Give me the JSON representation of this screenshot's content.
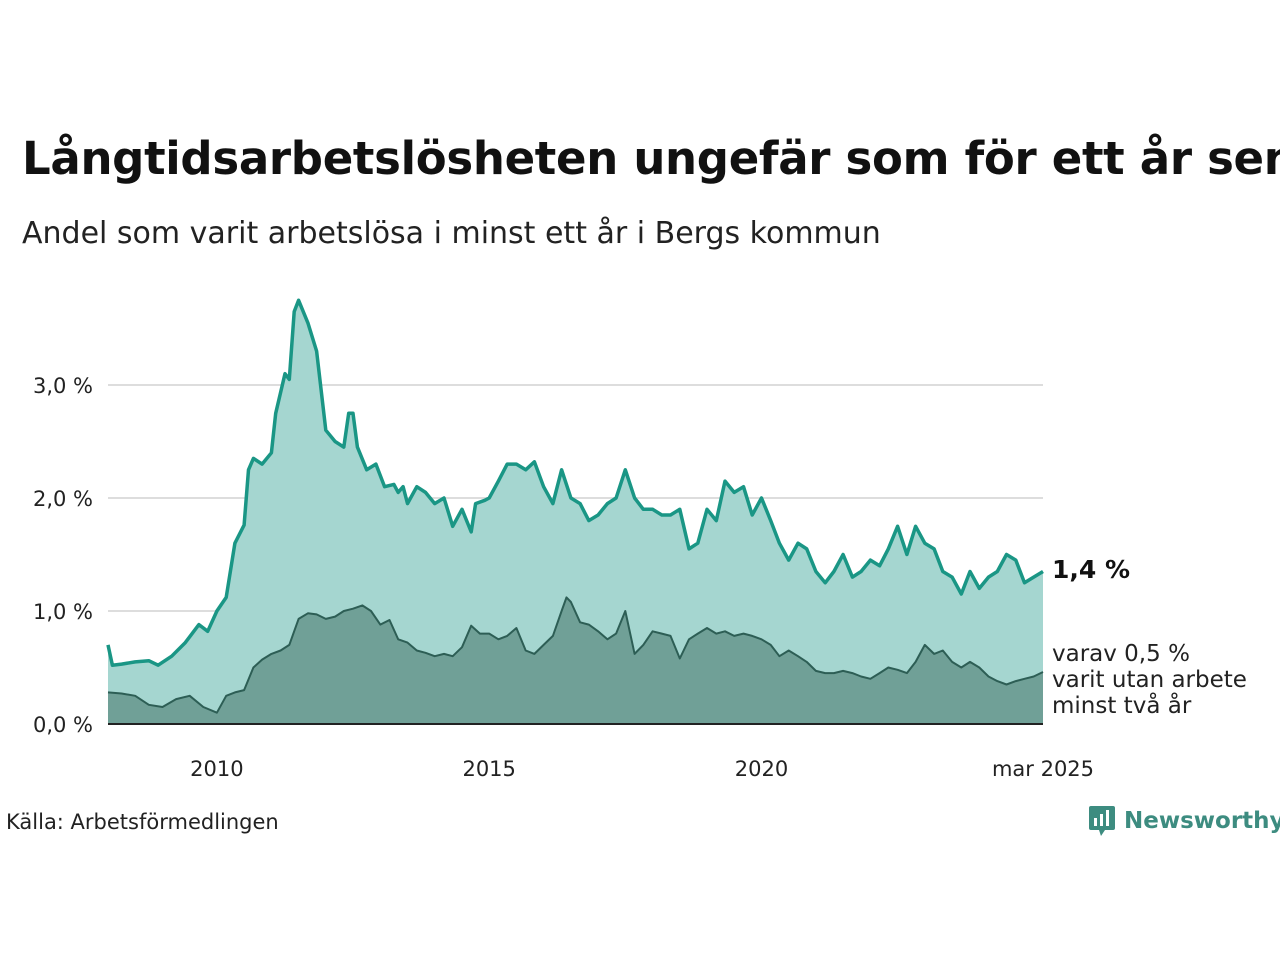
{
  "title": "Långtidsarbetslösheten ungefär som för ett år sen",
  "subtitle": "Andel som varit arbetslösa i minst ett år i Bergs kommun",
  "source": "Källa: Arbetsförmedlingen",
  "brand": {
    "name": "Newsworthy",
    "icon": "newsworthy-logo-icon"
  },
  "colors": {
    "long_line": "#1a9685",
    "long_fill": "#a5d6d0",
    "two_year_fill": "#70a097",
    "two_year_line": "#2d5e55",
    "grid": "#dddddd"
  },
  "annotations": {
    "end_value": "1,4 %",
    "sub_line1": "varav 0,5 %",
    "sub_line2": "varit utan arbete",
    "sub_line3": "minst två år"
  },
  "chart_data": {
    "type": "area",
    "y_ticks": [
      {
        "value": 0.0,
        "label": "0,0 %"
      },
      {
        "value": 1.0,
        "label": "1,0 %"
      },
      {
        "value": 2.0,
        "label": "2,0 %"
      },
      {
        "value": 3.0,
        "label": "3,0 %"
      }
    ],
    "x_ticks": [
      {
        "value": 2010,
        "label": "2010"
      },
      {
        "value": 2015,
        "label": "2015"
      },
      {
        "value": 2020,
        "label": "2020"
      },
      {
        "value": 2025.17,
        "label": "mar 2025"
      }
    ],
    "x_range": [
      2008.0,
      2025.17
    ],
    "y_range": [
      0,
      3.8
    ],
    "series": [
      {
        "name": "minst ett år",
        "points": [
          [
            2008.0,
            0.7
          ],
          [
            2008.08,
            0.52
          ],
          [
            2008.25,
            0.53
          ],
          [
            2008.5,
            0.55
          ],
          [
            2008.75,
            0.56
          ],
          [
            2008.92,
            0.52
          ],
          [
            2009.17,
            0.6
          ],
          [
            2009.42,
            0.72
          ],
          [
            2009.67,
            0.88
          ],
          [
            2009.83,
            0.82
          ],
          [
            2010.0,
            1.0
          ],
          [
            2010.17,
            1.12
          ],
          [
            2010.33,
            1.6
          ],
          [
            2010.5,
            1.76
          ],
          [
            2010.58,
            2.25
          ],
          [
            2010.67,
            2.35
          ],
          [
            2010.83,
            2.3
          ],
          [
            2011.0,
            2.4
          ],
          [
            2011.08,
            2.75
          ],
          [
            2011.25,
            3.1
          ],
          [
            2011.33,
            3.05
          ],
          [
            2011.42,
            3.65
          ],
          [
            2011.5,
            3.75
          ],
          [
            2011.67,
            3.55
          ],
          [
            2011.83,
            3.3
          ],
          [
            2012.0,
            2.6
          ],
          [
            2012.17,
            2.5
          ],
          [
            2012.33,
            2.45
          ],
          [
            2012.42,
            2.75
          ],
          [
            2012.5,
            2.75
          ],
          [
            2012.58,
            2.45
          ],
          [
            2012.75,
            2.25
          ],
          [
            2012.92,
            2.3
          ],
          [
            2013.08,
            2.1
          ],
          [
            2013.25,
            2.12
          ],
          [
            2013.33,
            2.05
          ],
          [
            2013.42,
            2.1
          ],
          [
            2013.5,
            1.95
          ],
          [
            2013.67,
            2.1
          ],
          [
            2013.83,
            2.05
          ],
          [
            2014.0,
            1.95
          ],
          [
            2014.17,
            2.0
          ],
          [
            2014.33,
            1.75
          ],
          [
            2014.5,
            1.9
          ],
          [
            2014.67,
            1.7
          ],
          [
            2014.75,
            1.95
          ],
          [
            2014.92,
            1.98
          ],
          [
            2015.0,
            2.0
          ],
          [
            2015.17,
            2.15
          ],
          [
            2015.33,
            2.3
          ],
          [
            2015.5,
            2.3
          ],
          [
            2015.67,
            2.25
          ],
          [
            2015.83,
            2.32
          ],
          [
            2016.0,
            2.1
          ],
          [
            2016.17,
            1.95
          ],
          [
            2016.33,
            2.25
          ],
          [
            2016.5,
            2.0
          ],
          [
            2016.67,
            1.95
          ],
          [
            2016.83,
            1.8
          ],
          [
            2017.0,
            1.85
          ],
          [
            2017.17,
            1.95
          ],
          [
            2017.33,
            2.0
          ],
          [
            2017.5,
            2.25
          ],
          [
            2017.67,
            2.0
          ],
          [
            2017.83,
            1.9
          ],
          [
            2018.0,
            1.9
          ],
          [
            2018.17,
            1.85
          ],
          [
            2018.33,
            1.85
          ],
          [
            2018.5,
            1.9
          ],
          [
            2018.67,
            1.55
          ],
          [
            2018.83,
            1.6
          ],
          [
            2019.0,
            1.9
          ],
          [
            2019.17,
            1.8
          ],
          [
            2019.33,
            2.15
          ],
          [
            2019.5,
            2.05
          ],
          [
            2019.67,
            2.1
          ],
          [
            2019.83,
            1.85
          ],
          [
            2020.0,
            2.0
          ],
          [
            2020.17,
            1.8
          ],
          [
            2020.33,
            1.6
          ],
          [
            2020.5,
            1.45
          ],
          [
            2020.67,
            1.6
          ],
          [
            2020.83,
            1.55
          ],
          [
            2021.0,
            1.35
          ],
          [
            2021.17,
            1.25
          ],
          [
            2021.33,
            1.35
          ],
          [
            2021.5,
            1.5
          ],
          [
            2021.67,
            1.3
          ],
          [
            2021.83,
            1.35
          ],
          [
            2022.0,
            1.45
          ],
          [
            2022.17,
            1.4
          ],
          [
            2022.33,
            1.55
          ],
          [
            2022.5,
            1.75
          ],
          [
            2022.67,
            1.5
          ],
          [
            2022.83,
            1.75
          ],
          [
            2023.0,
            1.6
          ],
          [
            2023.17,
            1.55
          ],
          [
            2023.33,
            1.35
          ],
          [
            2023.5,
            1.3
          ],
          [
            2023.67,
            1.15
          ],
          [
            2023.83,
            1.35
          ],
          [
            2024.0,
            1.2
          ],
          [
            2024.17,
            1.3
          ],
          [
            2024.33,
            1.35
          ],
          [
            2024.5,
            1.5
          ],
          [
            2024.67,
            1.45
          ],
          [
            2024.83,
            1.25
          ],
          [
            2025.0,
            1.3
          ],
          [
            2025.17,
            1.35
          ]
        ]
      },
      {
        "name": "minst två år",
        "points": [
          [
            2008.0,
            0.28
          ],
          [
            2008.25,
            0.27
          ],
          [
            2008.5,
            0.25
          ],
          [
            2008.75,
            0.17
          ],
          [
            2009.0,
            0.15
          ],
          [
            2009.25,
            0.22
          ],
          [
            2009.5,
            0.25
          ],
          [
            2009.75,
            0.15
          ],
          [
            2010.0,
            0.1
          ],
          [
            2010.17,
            0.25
          ],
          [
            2010.33,
            0.28
          ],
          [
            2010.5,
            0.3
          ],
          [
            2010.67,
            0.5
          ],
          [
            2010.83,
            0.57
          ],
          [
            2011.0,
            0.62
          ],
          [
            2011.17,
            0.65
          ],
          [
            2011.33,
            0.7
          ],
          [
            2011.5,
            0.93
          ],
          [
            2011.67,
            0.98
          ],
          [
            2011.83,
            0.97
          ],
          [
            2012.0,
            0.93
          ],
          [
            2012.17,
            0.95
          ],
          [
            2012.33,
            1.0
          ],
          [
            2012.5,
            1.02
          ],
          [
            2012.67,
            1.05
          ],
          [
            2012.83,
            1.0
          ],
          [
            2013.0,
            0.88
          ],
          [
            2013.17,
            0.92
          ],
          [
            2013.33,
            0.75
          ],
          [
            2013.5,
            0.72
          ],
          [
            2013.67,
            0.65
          ],
          [
            2013.83,
            0.63
          ],
          [
            2014.0,
            0.6
          ],
          [
            2014.17,
            0.62
          ],
          [
            2014.33,
            0.6
          ],
          [
            2014.5,
            0.68
          ],
          [
            2014.67,
            0.87
          ],
          [
            2014.83,
            0.8
          ],
          [
            2015.0,
            0.8
          ],
          [
            2015.17,
            0.75
          ],
          [
            2015.33,
            0.78
          ],
          [
            2015.5,
            0.85
          ],
          [
            2015.67,
            0.65
          ],
          [
            2015.83,
            0.62
          ],
          [
            2016.0,
            0.7
          ],
          [
            2016.17,
            0.78
          ],
          [
            2016.33,
            1.0
          ],
          [
            2016.42,
            1.12
          ],
          [
            2016.5,
            1.08
          ],
          [
            2016.67,
            0.9
          ],
          [
            2016.83,
            0.88
          ],
          [
            2017.0,
            0.82
          ],
          [
            2017.17,
            0.75
          ],
          [
            2017.33,
            0.8
          ],
          [
            2017.5,
            1.0
          ],
          [
            2017.67,
            0.62
          ],
          [
            2017.83,
            0.7
          ],
          [
            2018.0,
            0.82
          ],
          [
            2018.17,
            0.8
          ],
          [
            2018.33,
            0.78
          ],
          [
            2018.5,
            0.58
          ],
          [
            2018.67,
            0.75
          ],
          [
            2018.83,
            0.8
          ],
          [
            2019.0,
            0.85
          ],
          [
            2019.17,
            0.8
          ],
          [
            2019.33,
            0.82
          ],
          [
            2019.5,
            0.78
          ],
          [
            2019.67,
            0.8
          ],
          [
            2019.83,
            0.78
          ],
          [
            2020.0,
            0.75
          ],
          [
            2020.17,
            0.7
          ],
          [
            2020.33,
            0.6
          ],
          [
            2020.5,
            0.65
          ],
          [
            2020.67,
            0.6
          ],
          [
            2020.83,
            0.55
          ],
          [
            2021.0,
            0.47
          ],
          [
            2021.17,
            0.45
          ],
          [
            2021.33,
            0.45
          ],
          [
            2021.5,
            0.47
          ],
          [
            2021.67,
            0.45
          ],
          [
            2021.83,
            0.42
          ],
          [
            2022.0,
            0.4
          ],
          [
            2022.17,
            0.45
          ],
          [
            2022.33,
            0.5
          ],
          [
            2022.5,
            0.48
          ],
          [
            2022.67,
            0.45
          ],
          [
            2022.83,
            0.55
          ],
          [
            2023.0,
            0.7
          ],
          [
            2023.17,
            0.62
          ],
          [
            2023.33,
            0.65
          ],
          [
            2023.5,
            0.55
          ],
          [
            2023.67,
            0.5
          ],
          [
            2023.83,
            0.55
          ],
          [
            2024.0,
            0.5
          ],
          [
            2024.17,
            0.42
          ],
          [
            2024.33,
            0.38
          ],
          [
            2024.5,
            0.35
          ],
          [
            2024.67,
            0.38
          ],
          [
            2024.83,
            0.4
          ],
          [
            2025.0,
            0.42
          ],
          [
            2025.17,
            0.46
          ]
        ]
      }
    ]
  }
}
